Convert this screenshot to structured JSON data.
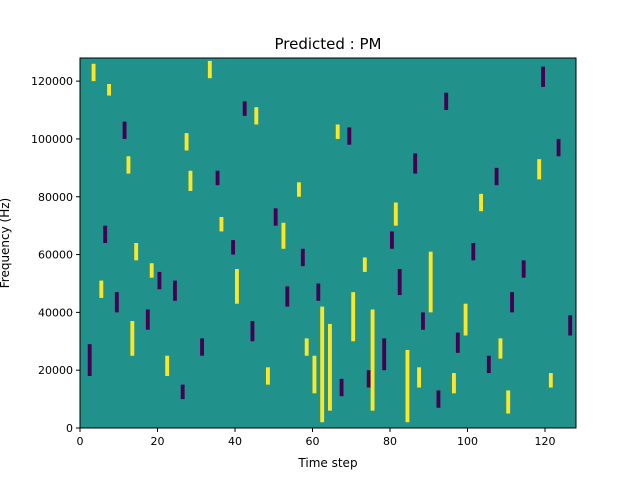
{
  "chart_data": {
    "type": "heatmap",
    "title": "Predicted : PM",
    "xlabel": "Time step",
    "ylabel": "Frequency (Hz)",
    "xlim": [
      0,
      128
    ],
    "ylim": [
      0,
      128000
    ],
    "xticks": [
      0,
      20,
      40,
      60,
      80,
      100,
      120
    ],
    "yticks": [
      0,
      20000,
      40000,
      60000,
      80000,
      100000,
      120000
    ],
    "ytick_labels": [
      "0",
      "20000",
      "40000",
      "60000",
      "80000",
      "100000",
      "120000"
    ],
    "grid": false,
    "legend": "none",
    "value_levels": [
      -1,
      0,
      1
    ],
    "colors": {
      "low": "#440154",
      "mid": "#21918c",
      "high": "#fde725"
    },
    "time_steps": 128,
    "frequency_bins": 128,
    "bin_width_hz": 1000,
    "background_value": 0,
    "high_cells": [
      [
        3,
        120,
        125
      ],
      [
        7,
        115,
        118
      ],
      [
        12,
        88,
        93
      ],
      [
        28,
        82,
        88
      ],
      [
        33,
        121,
        126
      ],
      [
        56,
        80,
        84
      ],
      [
        62,
        2,
        41
      ],
      [
        64,
        6,
        35
      ],
      [
        75,
        6,
        40
      ],
      [
        84,
        2,
        26
      ],
      [
        90,
        40,
        60
      ],
      [
        60,
        12,
        24
      ],
      [
        13,
        25,
        36
      ],
      [
        22,
        18,
        24
      ],
      [
        40,
        43,
        54
      ],
      [
        70,
        30,
        46
      ],
      [
        99,
        32,
        42
      ],
      [
        110,
        5,
        12
      ],
      [
        14,
        58,
        63
      ],
      [
        45,
        105,
        110
      ],
      [
        52,
        62,
        70
      ],
      [
        81,
        70,
        77
      ],
      [
        96,
        12,
        18
      ],
      [
        118,
        86,
        92
      ],
      [
        5,
        45,
        50
      ],
      [
        18,
        52,
        56
      ],
      [
        27,
        96,
        101
      ],
      [
        36,
        68,
        72
      ],
      [
        48,
        15,
        20
      ],
      [
        58,
        25,
        30
      ],
      [
        66,
        100,
        104
      ],
      [
        73,
        54,
        58
      ],
      [
        87,
        14,
        20
      ],
      [
        103,
        75,
        80
      ],
      [
        108,
        24,
        30
      ],
      [
        121,
        14,
        18
      ]
    ],
    "low_cells": [
      [
        2,
        18,
        28
      ],
      [
        9,
        40,
        46
      ],
      [
        17,
        34,
        40
      ],
      [
        24,
        44,
        50
      ],
      [
        31,
        25,
        30
      ],
      [
        39,
        60,
        64
      ],
      [
        44,
        30,
        36
      ],
      [
        53,
        42,
        48
      ],
      [
        67,
        11,
        16
      ],
      [
        78,
        20,
        30
      ],
      [
        82,
        46,
        54
      ],
      [
        86,
        88,
        94
      ],
      [
        92,
        7,
        12
      ],
      [
        97,
        26,
        32
      ],
      [
        105,
        19,
        24
      ],
      [
        111,
        40,
        46
      ],
      [
        119,
        118,
        124
      ],
      [
        126,
        32,
        38
      ],
      [
        6,
        64,
        69
      ],
      [
        11,
        100,
        105
      ],
      [
        20,
        48,
        53
      ],
      [
        26,
        10,
        14
      ],
      [
        35,
        84,
        88
      ],
      [
        42,
        108,
        112
      ],
      [
        50,
        70,
        75
      ],
      [
        57,
        56,
        61
      ],
      [
        61,
        44,
        49
      ],
      [
        69,
        98,
        103
      ],
      [
        74,
        14,
        19
      ],
      [
        80,
        62,
        67
      ],
      [
        88,
        34,
        39
      ],
      [
        94,
        110,
        115
      ],
      [
        101,
        58,
        63
      ],
      [
        107,
        84,
        89
      ],
      [
        114,
        52,
        57
      ],
      [
        123,
        94,
        99
      ]
    ]
  }
}
